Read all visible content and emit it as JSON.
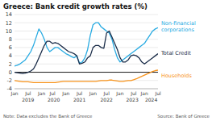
{
  "chart_data": {
    "type": "line",
    "title": "Greece: Bank credit growth rates (%)",
    "categories": [
      "Jan",
      null,
      null,
      null,
      null,
      "Jul",
      null,
      null,
      null,
      null,
      "Jan",
      null,
      null,
      null,
      "Jul",
      null,
      null,
      null,
      null,
      "Jan",
      null,
      null,
      null,
      null,
      "Jul",
      null,
      null,
      null,
      null,
      "Jan",
      null,
      null,
      null,
      null,
      "Jul",
      null,
      null,
      null,
      null,
      "Jan",
      null,
      null,
      null,
      null,
      "Jul",
      null,
      null,
      null,
      "Jan",
      null,
      null,
      null,
      null,
      "Jul"
    ],
    "annotations": [
      "2019",
      "2020",
      "2021",
      "2022",
      "2023",
      "2024"
    ],
    "notes": [
      "Note: Data excludes the Bank of Greece",
      "Source: Bank of Greece"
    ],
    "series": [
      {
        "name": "Non-financial\ncorporations",
        "color": "#29ABE2",
        "values": [
          1.5,
          1.7,
          2.0,
          2.5,
          3.0,
          4.0,
          5.0,
          6.5,
          8.5,
          10.5,
          9.5,
          8.0,
          6.0,
          5.0,
          5.5,
          6.0,
          6.0,
          5.5,
          5.0,
          4.5,
          4.2,
          3.8,
          3.5,
          4.0,
          2.2,
          2.5,
          3.5,
          5.5,
          9.0,
          11.5,
          12.0,
          12.0,
          11.0,
          10.5,
          10.0,
          9.5,
          8.0,
          5.5,
          3.5,
          2.5,
          3.0,
          3.5,
          4.0,
          4.5,
          5.0,
          5.5,
          6.0,
          6.5,
          7.0,
          8.0,
          9.0,
          10.0,
          10.5,
          10.8
        ]
      },
      {
        "name": "Total Credit",
        "color": "#1C2E4A",
        "values": [
          0.0,
          -0.1,
          -0.2,
          -0.3,
          -0.2,
          0.0,
          0.3,
          0.8,
          2.0,
          3.5,
          5.0,
          6.5,
          7.5,
          7.5,
          7.0,
          7.2,
          7.0,
          6.5,
          6.0,
          5.5,
          5.0,
          4.8,
          4.5,
          4.0,
          2.0,
          2.2,
          2.5,
          3.5,
          4.0,
          6.0,
          6.5,
          6.5,
          6.0,
          5.8,
          9.5,
          10.0,
          8.5,
          7.0,
          5.5,
          3.5,
          2.5,
          2.5,
          3.0,
          4.0,
          4.2,
          4.0,
          3.5,
          2.5,
          2.0,
          2.5,
          3.0,
          3.5,
          4.0,
          4.5
        ]
      },
      {
        "name": "Households",
        "color": "#F7941D",
        "values": [
          -2.0,
          -2.1,
          -2.2,
          -2.3,
          -2.3,
          -2.3,
          -2.4,
          -2.5,
          -2.5,
          -2.5,
          -2.5,
          -2.5,
          -2.5,
          -2.5,
          -2.5,
          -2.5,
          -2.4,
          -2.3,
          -2.2,
          -2.2,
          -2.2,
          -2.2,
          -2.2,
          -2.2,
          -2.2,
          -2.2,
          -2.2,
          -2.2,
          -2.2,
          -2.2,
          -2.2,
          -2.1,
          -2.0,
          -2.0,
          -2.0,
          -1.9,
          -1.9,
          -2.0,
          -2.1,
          -2.2,
          -2.2,
          -2.1,
          -2.0,
          -2.0,
          -1.8,
          -1.6,
          -1.3,
          -1.0,
          -0.7,
          -0.4,
          -0.1,
          0.2,
          0.4,
          0.5
        ]
      }
    ],
    "ylim": [
      -4,
      14
    ],
    "yticks": [
      -4,
      -2,
      0,
      2,
      4,
      6,
      8,
      10,
      12,
      14
    ],
    "grid": true,
    "legend": "right"
  }
}
